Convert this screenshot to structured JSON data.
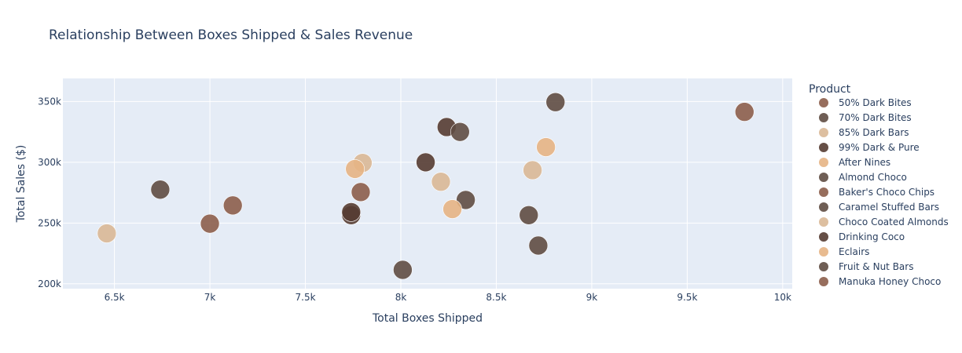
{
  "chart_data": {
    "type": "scatter",
    "title": "Relationship Between Boxes Shipped & Sales Revenue",
    "xlabel": "Total Boxes Shipped",
    "ylabel": "Total Sales ($)",
    "xlim": [
      6230,
      10050
    ],
    "ylim": [
      196000,
      369000
    ],
    "x_ticks": [
      6500,
      7000,
      7500,
      8000,
      8500,
      9000,
      9500,
      10000
    ],
    "x_tick_labels": [
      "6.5k",
      "7k",
      "7.5k",
      "8k",
      "8.5k",
      "9k",
      "9.5k",
      "10k"
    ],
    "y_ticks": [
      200000,
      250000,
      300000,
      350000
    ],
    "y_tick_labels": [
      "200k",
      "250k",
      "300k",
      "350k"
    ],
    "grid": true,
    "plot_background": "#e5ecf6",
    "legend_title": "Product",
    "legend_position": "right",
    "series": [
      {
        "name": "50% Dark Bites",
        "color": "#8c5e4b",
        "points": [
          {
            "x": 7000,
            "y": 249500
          }
        ]
      },
      {
        "name": "70% Dark Bites",
        "color": "#5f4c43",
        "points": [
          {
            "x": 6740,
            "y": 277500
          }
        ]
      },
      {
        "name": "85% Dark Bars",
        "color": "#d9b896",
        "points": [
          {
            "x": 6460,
            "y": 241500
          }
        ]
      },
      {
        "name": "99% Dark & Pure",
        "color": "#553c32",
        "points": [
          {
            "x": 8240,
            "y": 329000
          }
        ]
      },
      {
        "name": "After Nines",
        "color": "#e6b484",
        "points": [
          {
            "x": 8760,
            "y": 312500
          }
        ]
      },
      {
        "name": "Almond Choco",
        "color": "#5f4c43",
        "points": [
          {
            "x": 8310,
            "y": 325000
          }
        ]
      },
      {
        "name": "Baker's Choco Chips",
        "color": "#8c5e4b",
        "points": [
          {
            "x": 7790,
            "y": 275500
          }
        ]
      },
      {
        "name": "Caramel Stuffed Bars",
        "color": "#5f4c43",
        "points": [
          {
            "x": 8340,
            "y": 269000
          }
        ]
      },
      {
        "name": "Choco Coated Almonds",
        "color": "#d9b896",
        "points": [
          {
            "x": 7800,
            "y": 299500
          }
        ]
      },
      {
        "name": "Drinking Coco",
        "color": "#553c32",
        "points": [
          {
            "x": 7740,
            "y": 256500
          }
        ]
      },
      {
        "name": "Eclairs",
        "color": "#e6b484",
        "points": [
          {
            "x": 7760,
            "y": 294500
          }
        ]
      },
      {
        "name": "Fruit & Nut Bars",
        "color": "#5f4c43",
        "points": [
          {
            "x": 8810,
            "y": 349500
          }
        ]
      },
      {
        "name": "Manuka Honey Choco",
        "color": "#8c5e4b",
        "points": [
          {
            "x": 7120,
            "y": 264500
          }
        ]
      },
      {
        "name": "",
        "color": "#5f4c43",
        "points": [
          {
            "x": 8010,
            "y": 211500
          }
        ]
      },
      {
        "name": "",
        "color": "#553c32",
        "points": [
          {
            "x": 8130,
            "y": 300000
          }
        ]
      },
      {
        "name": "",
        "color": "#d9b896",
        "points": [
          {
            "x": 8210,
            "y": 284000
          }
        ]
      },
      {
        "name": "",
        "color": "#e6b484",
        "points": [
          {
            "x": 8270,
            "y": 261500
          }
        ]
      },
      {
        "name": "",
        "color": "#5f4c43",
        "points": [
          {
            "x": 8670,
            "y": 256500
          }
        ]
      },
      {
        "name": "",
        "color": "#d9b896",
        "points": [
          {
            "x": 8690,
            "y": 293500
          }
        ]
      },
      {
        "name": "",
        "color": "#5f4c43",
        "points": [
          {
            "x": 8720,
            "y": 231500
          }
        ]
      },
      {
        "name": "",
        "color": "#8c5e4b",
        "points": [
          {
            "x": 9800,
            "y": 341500
          }
        ]
      },
      {
        "name": "",
        "color": "#553c32",
        "points": [
          {
            "x": 7740,
            "y": 259000
          }
        ]
      }
    ]
  }
}
